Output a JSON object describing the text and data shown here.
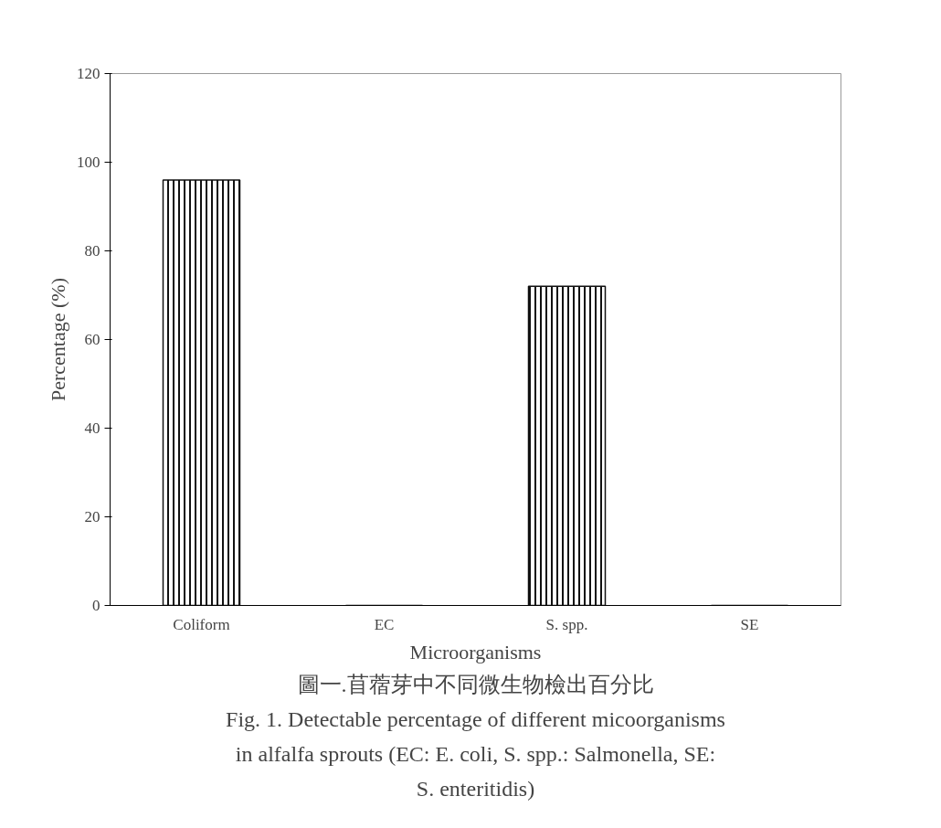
{
  "chart_data": {
    "type": "bar",
    "xlabel": "Microorganisms",
    "ylabel": "Percentage (%)",
    "categories": [
      "Coliform",
      "EC",
      "S. spp.",
      "SE"
    ],
    "values": [
      96,
      0,
      72,
      0
    ],
    "color": "#111111",
    "ylim": [
      0,
      120
    ],
    "yticks": [
      0,
      20,
      40,
      60,
      80,
      100,
      120
    ],
    "grid": false,
    "annotations": [
      "圖一.苜蓿芽中不同微生物檢出百分比",
      "Fig. 1. Detectable percentage of different micoorganisms in alfalfa sprouts (EC: E. coli, S. spp.: Salmonella, SE: S. enteritidis)"
    ]
  }
}
